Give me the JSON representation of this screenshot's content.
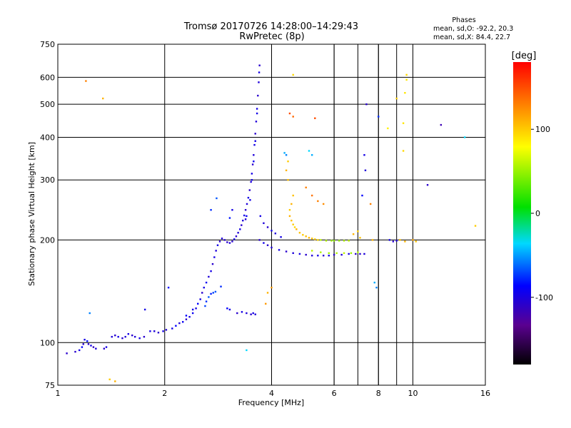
{
  "chart_data": {
    "type": "scatter",
    "title": "Tromsø 20170726 14:28:00–14:29:43",
    "subtitle": "RwPretec (8p)",
    "xlabel": "Frequency [MHz]",
    "ylabel": "Stationary phase Virtual Height [km]",
    "x_scale": "log",
    "y_scale": "log",
    "xlim": [
      1,
      16
    ],
    "ylim": [
      75,
      750
    ],
    "x_ticks": [
      1,
      2,
      4,
      6,
      8,
      10,
      16
    ],
    "x_tick_labels": [
      "1",
      "2",
      "4",
      "6",
      "8",
      "10",
      "16"
    ],
    "x_minor_gridlines": [
      6,
      7,
      8,
      9
    ],
    "y_ticks": [
      75,
      100,
      200,
      300,
      400,
      500,
      600,
      750
    ],
    "y_tick_labels": [
      "75",
      "100",
      "200",
      "300",
      "400",
      "500",
      "600",
      "750"
    ],
    "grid": true,
    "stats": {
      "heading": "Phases",
      "line_o": "mean, sd,O: -92.2, 20.3",
      "line_x": "mean, sd,X:  84.4, 22.7"
    },
    "colorbar": {
      "label": "[deg]",
      "range": [
        -180,
        180
      ],
      "ticks": [
        100,
        0,
        -100
      ],
      "tick_labels": [
        "100",
        "0",
        "-100"
      ]
    },
    "series": [
      {
        "points": [
          [
            1.06,
            93,
            -110
          ],
          [
            1.12,
            94,
            -110
          ],
          [
            1.15,
            95,
            -100
          ],
          [
            1.17,
            97,
            -90
          ],
          [
            1.18,
            99,
            -110
          ],
          [
            1.19,
            102,
            -100
          ],
          [
            1.21,
            101,
            -85
          ],
          [
            1.22,
            99,
            -110
          ],
          [
            1.24,
            98,
            -100
          ],
          [
            1.26,
            97,
            -115
          ],
          [
            1.28,
            96,
            -105
          ],
          [
            1.35,
            96,
            -110
          ],
          [
            1.37,
            97,
            -100
          ],
          [
            1.42,
            104,
            -105
          ],
          [
            1.45,
            105,
            -110
          ],
          [
            1.48,
            104,
            -100
          ],
          [
            1.52,
            103,
            -110
          ],
          [
            1.55,
            104,
            -105
          ],
          [
            1.58,
            106,
            -100
          ],
          [
            1.62,
            105,
            -110
          ],
          [
            1.65,
            104,
            -105
          ],
          [
            1.7,
            103,
            -100
          ],
          [
            1.75,
            104,
            -110
          ],
          [
            1.82,
            108,
            -100
          ],
          [
            1.87,
            108,
            -105
          ],
          [
            1.92,
            107,
            -110
          ],
          [
            1.98,
            108,
            -100
          ],
          [
            2.02,
            109,
            -105
          ],
          [
            2.1,
            110,
            -100
          ],
          [
            2.15,
            112,
            -90
          ],
          [
            2.2,
            114,
            -105
          ],
          [
            2.25,
            115,
            -95
          ],
          [
            2.3,
            117,
            -110
          ],
          [
            2.35,
            119,
            -100
          ],
          [
            2.4,
            122,
            -95
          ],
          [
            2.45,
            126,
            -100
          ],
          [
            2.48,
            130,
            -90
          ],
          [
            2.52,
            134,
            -100
          ],
          [
            2.55,
            140,
            -110
          ],
          [
            2.58,
            145,
            -100
          ],
          [
            2.62,
            150,
            -95
          ],
          [
            2.66,
            156,
            -105
          ],
          [
            2.7,
            162,
            -100
          ],
          [
            2.73,
            170,
            -110
          ],
          [
            2.76,
            178,
            -100
          ],
          [
            2.79,
            186,
            -105
          ],
          [
            2.82,
            193,
            -100
          ],
          [
            2.86,
            198,
            -110
          ],
          [
            2.9,
            202,
            -105
          ],
          [
            2.95,
            200,
            -110
          ],
          [
            3.0,
            197,
            -110
          ],
          [
            3.05,
            196,
            -105
          ],
          [
            3.1,
            198,
            -110
          ],
          [
            3.14,
            201,
            -100
          ],
          [
            3.18,
            205,
            -110
          ],
          [
            3.22,
            210,
            -105
          ],
          [
            3.26,
            215,
            -100
          ],
          [
            3.29,
            221,
            -110
          ],
          [
            3.32,
            228,
            -105
          ],
          [
            3.35,
            236,
            -100
          ],
          [
            3.38,
            245,
            -110
          ],
          [
            3.41,
            255,
            -105
          ],
          [
            3.44,
            266,
            -100
          ],
          [
            3.47,
            280,
            -110
          ],
          [
            3.5,
            296,
            -105
          ],
          [
            3.52,
            313,
            -100
          ],
          [
            3.54,
            333,
            -110
          ],
          [
            3.56,
            355,
            -105
          ],
          [
            3.58,
            380,
            -100
          ],
          [
            3.6,
            410,
            -110
          ],
          [
            3.62,
            445,
            -105
          ],
          [
            3.64,
            485,
            -100
          ],
          [
            3.66,
            530,
            -110
          ],
          [
            3.68,
            580,
            -105
          ],
          [
            3.69,
            620,
            -100
          ],
          [
            3.7,
            650,
            -110
          ],
          [
            3.4,
            235,
            -95
          ],
          [
            3.48,
            262,
            -100
          ],
          [
            3.52,
            300,
            -100
          ],
          [
            3.56,
            340,
            -95
          ],
          [
            3.6,
            390,
            -100
          ],
          [
            3.64,
            470,
            -100
          ],
          [
            3.38,
            230,
            -105
          ],
          [
            3.7,
            200,
            -110
          ],
          [
            3.8,
            196,
            -100
          ],
          [
            3.9,
            193,
            -110
          ],
          [
            4.0,
            190,
            -105
          ],
          [
            4.2,
            187,
            -100
          ],
          [
            4.4,
            185,
            -110
          ],
          [
            4.6,
            183,
            -105
          ],
          [
            4.8,
            182,
            -100
          ],
          [
            5.0,
            181,
            -110
          ],
          [
            5.2,
            180,
            -105
          ],
          [
            5.4,
            180,
            -100
          ],
          [
            5.6,
            180,
            -110
          ],
          [
            5.8,
            180,
            -100
          ],
          [
            6.0,
            181,
            -110
          ],
          [
            6.3,
            181,
            -105
          ],
          [
            6.6,
            182,
            -100
          ],
          [
            6.9,
            182,
            -110
          ],
          [
            7.1,
            182,
            -110
          ],
          [
            7.3,
            182,
            -105
          ],
          [
            3.72,
            235,
            -100
          ],
          [
            3.8,
            224,
            -105
          ],
          [
            3.9,
            218,
            -110
          ],
          [
            4.0,
            213,
            -100
          ],
          [
            4.1,
            209,
            -105
          ],
          [
            4.25,
            204,
            -100
          ],
          [
            4.5,
            235,
            110
          ],
          [
            4.55,
            228,
            105
          ],
          [
            4.6,
            222,
            100
          ],
          [
            4.65,
            218,
            95
          ],
          [
            4.7,
            215,
            110
          ],
          [
            4.8,
            210,
            105
          ],
          [
            4.9,
            207,
            100
          ],
          [
            5.0,
            205,
            105
          ],
          [
            5.1,
            203,
            110
          ],
          [
            5.2,
            202,
            105
          ],
          [
            5.3,
            201,
            100
          ],
          [
            5.4,
            200,
            95
          ],
          [
            5.5,
            200,
            60
          ],
          [
            5.7,
            199,
            55
          ],
          [
            5.9,
            199,
            50
          ],
          [
            6.0,
            199,
            45
          ],
          [
            6.2,
            199,
            50
          ],
          [
            6.4,
            199,
            55
          ],
          [
            6.6,
            199,
            60
          ],
          [
            5.2,
            186,
            60
          ],
          [
            5.5,
            184,
            55
          ],
          [
            5.8,
            183,
            50
          ],
          [
            6.1,
            183,
            55
          ],
          [
            6.4,
            183,
            60
          ],
          [
            6.7,
            183,
            50
          ],
          [
            7.0,
            184,
            55
          ],
          [
            4.6,
            270,
            105
          ],
          [
            4.55,
            255,
            110
          ],
          [
            4.5,
            245,
            100
          ],
          [
            4.45,
            300,
            105
          ],
          [
            4.4,
            320,
            110
          ],
          [
            4.45,
            340,
            100
          ],
          [
            5.0,
            285,
            130
          ],
          [
            5.2,
            270,
            135
          ],
          [
            5.4,
            260,
            130
          ],
          [
            5.6,
            255,
            125
          ],
          [
            4.6,
            460,
            140
          ],
          [
            5.3,
            455,
            150
          ],
          [
            4.5,
            470,
            150
          ],
          [
            4.6,
            610,
            95
          ],
          [
            2.6,
            128,
            -75
          ],
          [
            2.62,
            132,
            -80
          ],
          [
            2.66,
            136,
            -70
          ],
          [
            2.7,
            139,
            -85
          ],
          [
            2.74,
            140,
            -75
          ],
          [
            2.78,
            141,
            -70
          ],
          [
            3.0,
            126,
            -90
          ],
          [
            3.05,
            125,
            -100
          ],
          [
            3.2,
            122,
            -110
          ],
          [
            3.3,
            123,
            -100
          ],
          [
            3.4,
            122,
            -105
          ],
          [
            3.5,
            121,
            -110
          ],
          [
            3.55,
            122,
            -100
          ],
          [
            3.6,
            121,
            -105
          ],
          [
            2.88,
            146,
            -80
          ],
          [
            2.3,
            120,
            -90
          ],
          [
            2.4,
            125,
            -100
          ],
          [
            1.23,
            122,
            -60
          ],
          [
            1.2,
            585,
            130
          ],
          [
            1.34,
            520,
            110
          ],
          [
            1.4,
            78,
            100
          ],
          [
            1.45,
            77,
            110
          ],
          [
            1.76,
            125,
            -100
          ],
          [
            2.05,
            145,
            -90
          ],
          [
            2.7,
            245,
            -80
          ],
          [
            2.8,
            265,
            -70
          ],
          [
            3.05,
            232,
            -85
          ],
          [
            3.1,
            245,
            -100
          ],
          [
            4.35,
            360,
            -50
          ],
          [
            4.4,
            355,
            -60
          ],
          [
            5.1,
            365,
            -40
          ],
          [
            5.2,
            355,
            -50
          ],
          [
            7.4,
            500,
            -110
          ],
          [
            7.3,
            355,
            -100
          ],
          [
            7.35,
            320,
            -105
          ],
          [
            7.2,
            270,
            -90
          ],
          [
            7.6,
            255,
            130
          ],
          [
            8.0,
            460,
            -80
          ],
          [
            8.5,
            425,
            85
          ],
          [
            9.0,
            520,
            100
          ],
          [
            9.6,
            610,
            95
          ],
          [
            9.6,
            590,
            90
          ],
          [
            9.5,
            540,
            90
          ],
          [
            9.4,
            365,
            95
          ],
          [
            9.4,
            440,
            90
          ],
          [
            9.2,
            200,
            105
          ],
          [
            9.5,
            198,
            110
          ],
          [
            10.0,
            200,
            115
          ],
          [
            10.2,
            198,
            105
          ],
          [
            8.6,
            200,
            -100
          ],
          [
            8.8,
            198,
            -110
          ],
          [
            9.0,
            199,
            -105
          ],
          [
            7.8,
            150,
            -50
          ],
          [
            7.9,
            145,
            -60
          ],
          [
            7.7,
            200,
            110
          ],
          [
            11.0,
            290,
            -110
          ],
          [
            12.0,
            435,
            -120
          ],
          [
            14.0,
            400,
            -40
          ],
          [
            15.0,
            220,
            100
          ],
          [
            3.4,
            95,
            -40
          ],
          [
            3.85,
            130,
            120
          ],
          [
            3.9,
            140,
            110
          ],
          [
            4.0,
            145,
            120
          ],
          [
            7.1,
            203,
            105
          ],
          [
            7.0,
            212,
            100
          ],
          [
            6.8,
            208,
            110
          ]
        ]
      }
    ]
  }
}
